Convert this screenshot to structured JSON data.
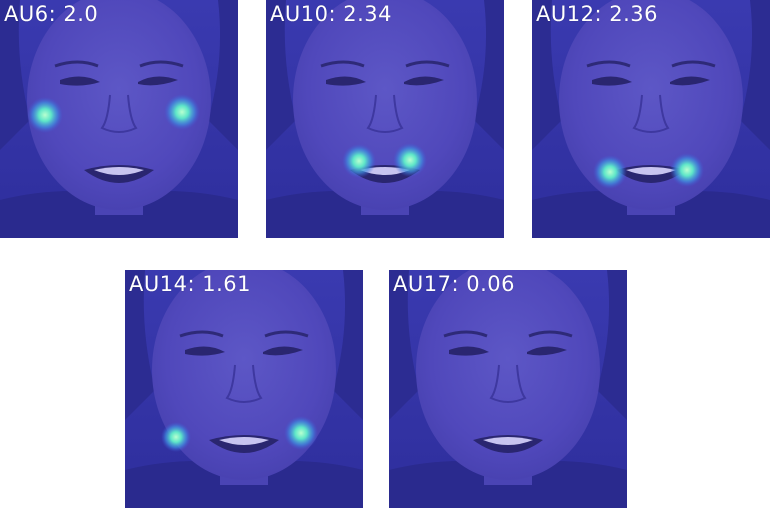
{
  "panels": [
    {
      "label": "AU6: 2.0",
      "hotspots": "cheeks"
    },
    {
      "label": "AU10: 2.34",
      "hotspots": "upper-lip-corners"
    },
    {
      "label": "AU12: 2.36",
      "hotspots": "mouth-corners"
    },
    {
      "label": "AU14: 1.61",
      "hotspots": "lower-cheeks"
    },
    {
      "label": "AU17: 0.06",
      "hotspots": "none"
    }
  ],
  "colors": {
    "overlay": "#3434b8",
    "hotspot": "#6ff0c8",
    "label": "#ffffff"
  }
}
